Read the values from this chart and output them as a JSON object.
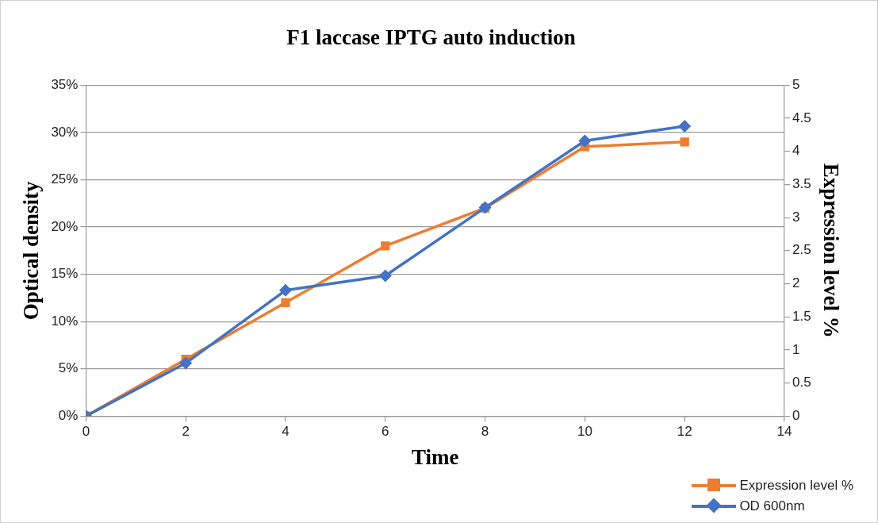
{
  "chart_data": {
    "type": "line",
    "title": "F1 laccase IPTG auto induction",
    "xlabel": "Time",
    "ylabel": "Optical density",
    "y2label": "Expression level %",
    "x": [
      0,
      2,
      4,
      6,
      8,
      10,
      12
    ],
    "series": [
      {
        "name": "Expression level %",
        "color": "#ed7d31",
        "marker": "square",
        "values": [
          0,
          6,
          12,
          18,
          22,
          28.5,
          29
        ]
      },
      {
        "name": "OD 600nm",
        "color": "#4472c4",
        "marker": "diamond",
        "axis": "y2",
        "values": [
          0,
          0.8,
          1.9,
          2.12,
          3.15,
          4.16,
          4.38
        ]
      }
    ],
    "xlim": [
      0,
      14
    ],
    "xticks": [
      0,
      2,
      4,
      6,
      8,
      10,
      12,
      14
    ],
    "ylim": [
      0,
      35
    ],
    "yticks": [
      {
        "value": 0,
        "label": "0%"
      },
      {
        "value": 5,
        "label": "5%"
      },
      {
        "value": 10,
        "label": "10%"
      },
      {
        "value": 15,
        "label": "15%"
      },
      {
        "value": 20,
        "label": "20%"
      },
      {
        "value": 25,
        "label": "25%"
      },
      {
        "value": 30,
        "label": "30%"
      },
      {
        "value": 35,
        "label": "35%"
      }
    ],
    "y2lim": [
      0,
      5
    ],
    "y2ticks": [
      0,
      0.5,
      1,
      1.5,
      2,
      2.5,
      3,
      3.5,
      4,
      4.5,
      5
    ],
    "grid": "y",
    "legend": "bottom right",
    "line_style": "solid"
  }
}
